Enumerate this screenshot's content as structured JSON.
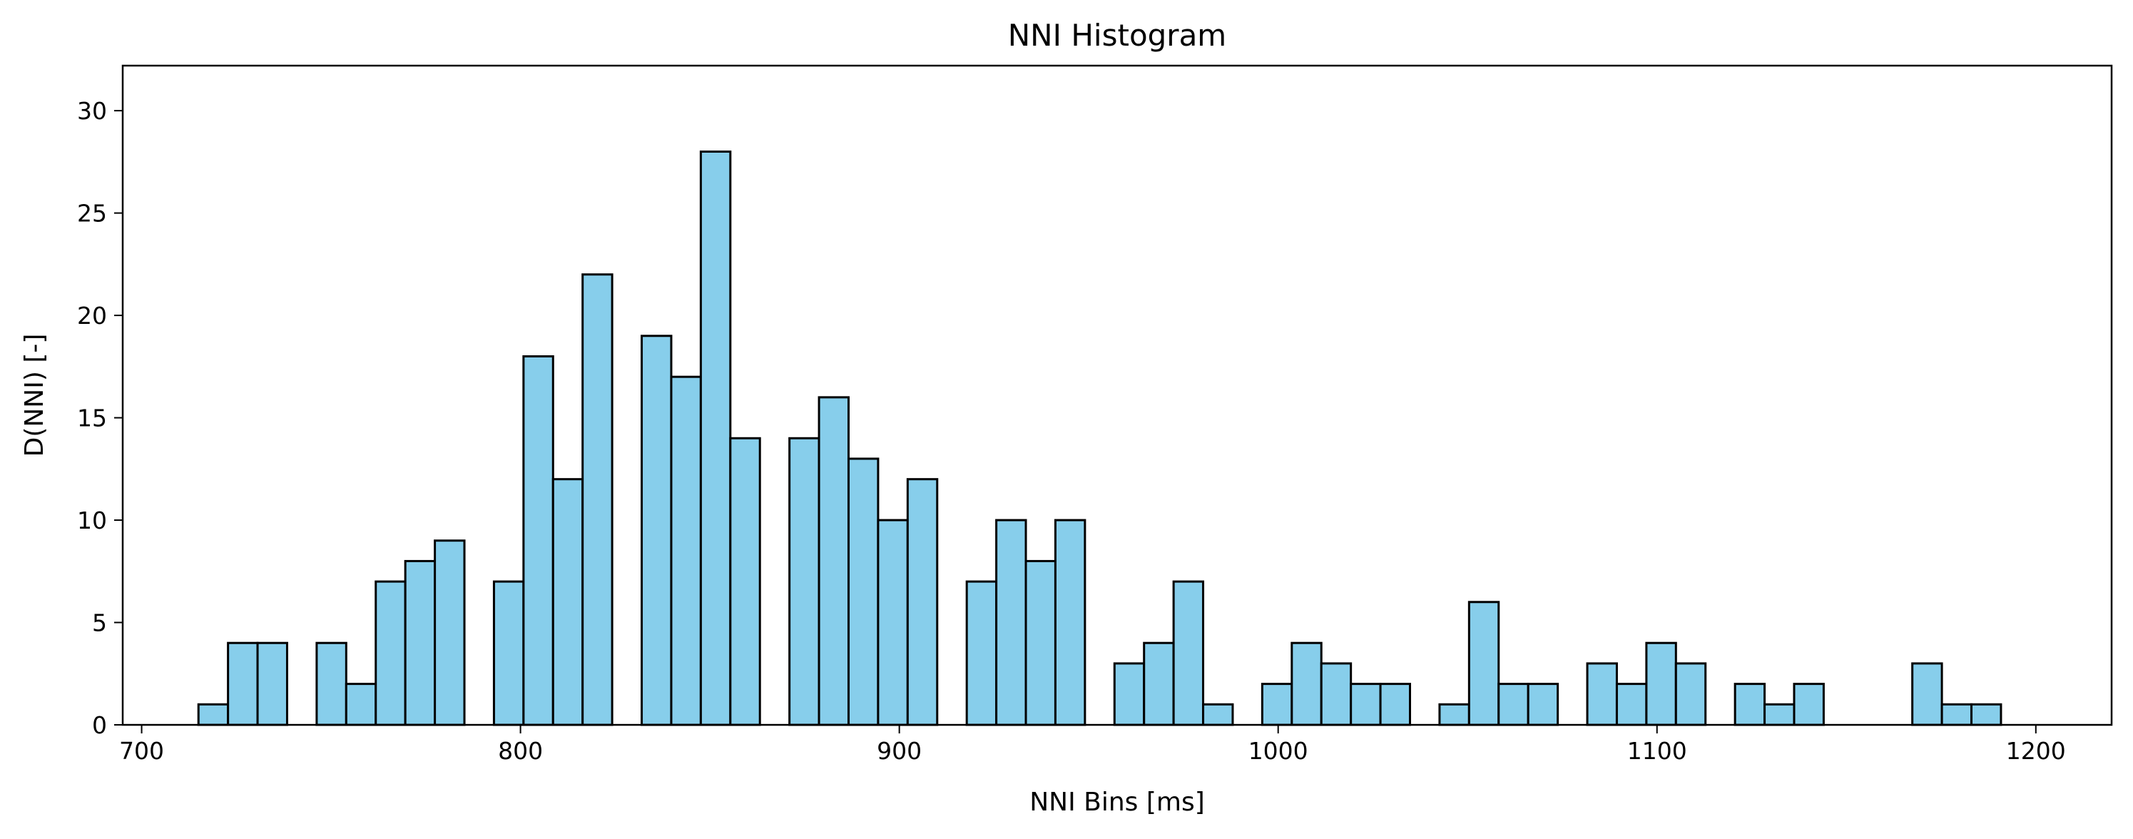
{
  "chart_data": {
    "type": "bar",
    "title": "NNI Histogram",
    "xlabel": "NNI Bins [ms]",
    "ylabel": "D(NNI) [-]",
    "xlim": [
      695,
      1220
    ],
    "ylim": [
      0,
      32.2
    ],
    "xticks": [
      700,
      800,
      900,
      1000,
      1100,
      1200
    ],
    "yticks": [
      0,
      5,
      10,
      15,
      20,
      25,
      30
    ],
    "bin_width": 7.8,
    "bin_starts": [
      715.0,
      722.8,
      730.6,
      738.4,
      746.2,
      754.0,
      761.8,
      769.6,
      777.4,
      785.2,
      793.0,
      800.8,
      808.6,
      816.4,
      824.2,
      832.0,
      839.8,
      847.6,
      855.4,
      863.2,
      871.0,
      878.8,
      886.6,
      894.4,
      902.2,
      910.0,
      917.8,
      925.6,
      933.4,
      941.2,
      949.0,
      956.8,
      964.6,
      972.4,
      980.2,
      988.0,
      995.8,
      1003.6,
      1011.4,
      1019.2,
      1027.0,
      1034.8,
      1042.6,
      1050.4,
      1058.2,
      1066.0,
      1073.8,
      1081.6,
      1089.4,
      1097.2,
      1105.0,
      1112.8,
      1120.6,
      1128.4,
      1136.2,
      1144.0,
      1151.8,
      1159.6,
      1167.4,
      1175.2,
      1183.0
    ],
    "values": [
      1,
      4,
      4,
      0,
      4,
      2,
      7,
      8,
      9,
      0,
      7,
      18,
      12,
      22,
      0,
      19,
      17,
      28,
      14,
      0,
      14,
      16,
      13,
      10,
      12,
      0,
      7,
      10,
      8,
      10,
      0,
      3,
      4,
      7,
      1,
      0,
      2,
      4,
      3,
      2,
      2,
      0,
      1,
      6,
      2,
      2,
      0,
      3,
      2,
      4,
      3,
      0,
      2,
      1,
      2,
      0,
      0,
      0,
      3,
      1,
      1
    ],
    "bar_color": "#87ceeb",
    "edge_color": "#000000",
    "grid": false,
    "legend": "none"
  }
}
